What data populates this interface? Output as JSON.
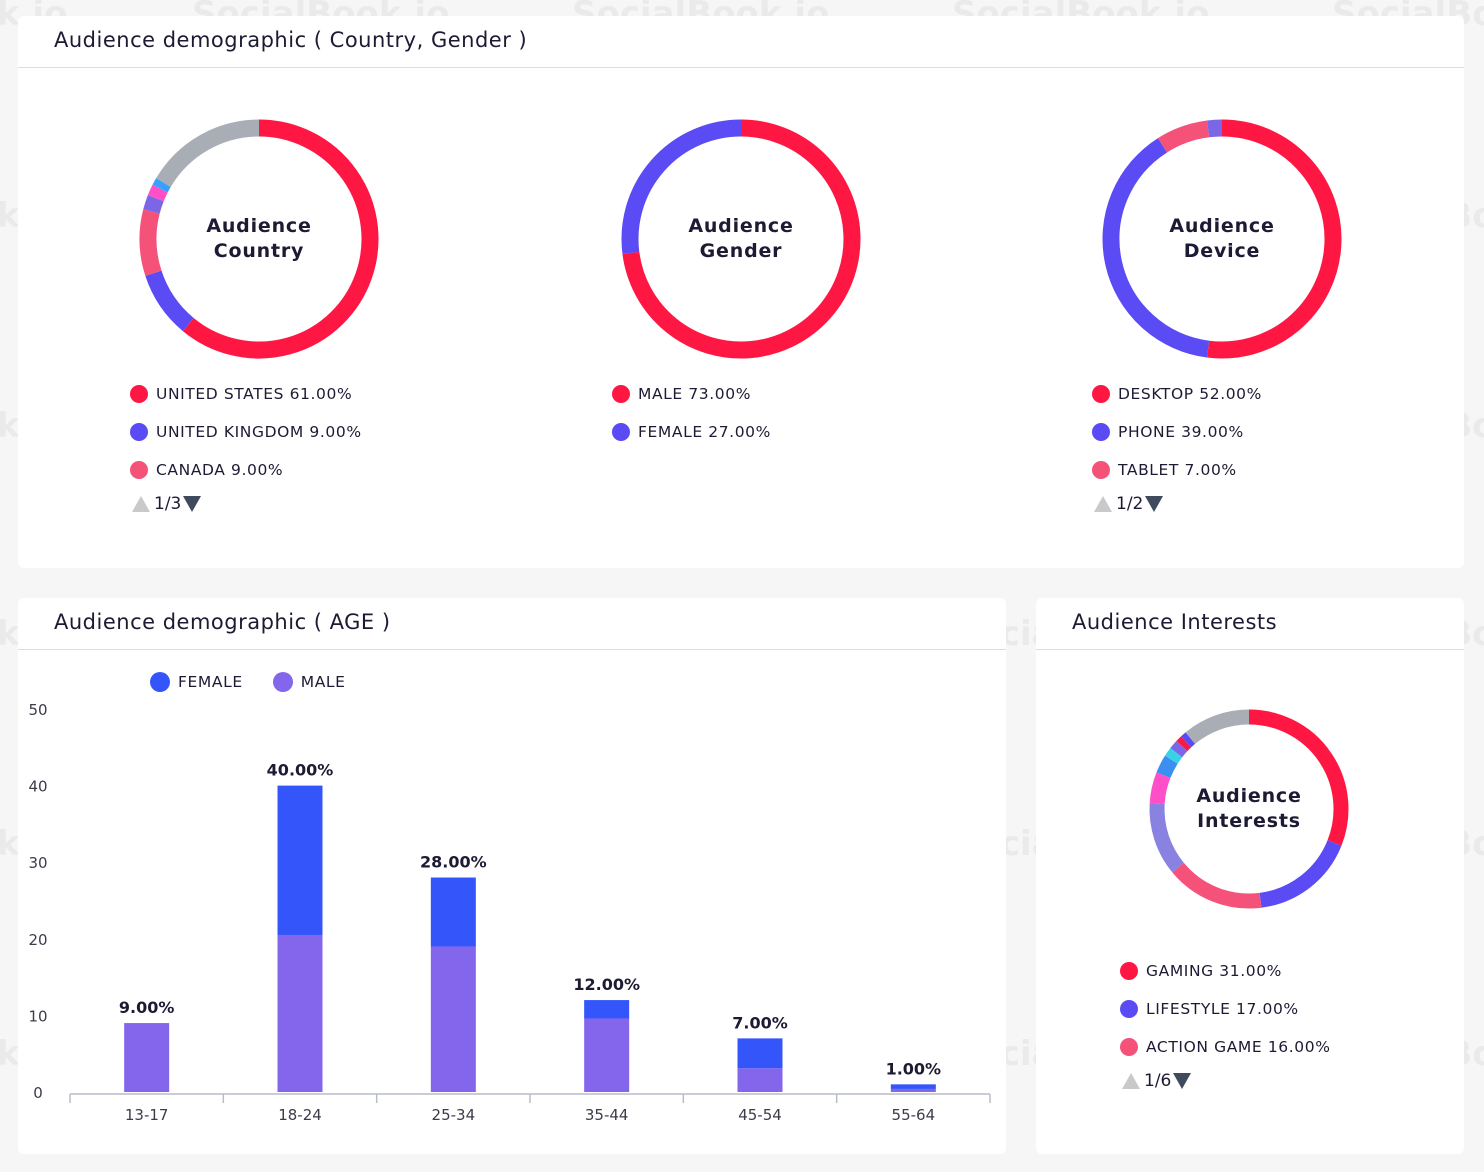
{
  "watermark": "SocialBook.io",
  "country_gender_card": {
    "title": "Audience demographic ( Country, Gender )",
    "country": {
      "center_line1": "Audience",
      "center_line2": "Country",
      "segments": [
        {
          "value": 61,
          "color": "#ff1744"
        },
        {
          "value": 9,
          "color": "#5b4bf5"
        },
        {
          "value": 9,
          "color": "#f5527a"
        },
        {
          "value": 2,
          "color": "#7b66e8"
        },
        {
          "value": 1.5,
          "color": "#ff4fc8"
        },
        {
          "value": 1,
          "color": "#3aa0ff"
        },
        {
          "value": 16.5,
          "color": "#a9adb6"
        }
      ],
      "legend": [
        {
          "label": "UNITED STATES 61.00%",
          "color": "#ff1744"
        },
        {
          "label": "UNITED KINGDOM 9.00%",
          "color": "#5b4bf5"
        },
        {
          "label": "CANADA 9.00%",
          "color": "#f5527a"
        }
      ],
      "pager": "1/3"
    },
    "gender": {
      "center_line1": "Audience",
      "center_line2": "Gender",
      "segments": [
        {
          "value": 73,
          "color": "#ff1744"
        },
        {
          "value": 27,
          "color": "#5b4bf5"
        }
      ],
      "legend": [
        {
          "label": "MALE 73.00%",
          "color": "#ff1744"
        },
        {
          "label": "FEMALE 27.00%",
          "color": "#5b4bf5"
        }
      ]
    },
    "device": {
      "center_line1": "Audience",
      "center_line2": "Device",
      "segments": [
        {
          "value": 52,
          "color": "#ff1744"
        },
        {
          "value": 39,
          "color": "#5b4bf5"
        },
        {
          "value": 7,
          "color": "#f5527a"
        },
        {
          "value": 2,
          "color": "#7b66e8"
        }
      ],
      "legend": [
        {
          "label": "DESKTOP 52.00%",
          "color": "#ff1744"
        },
        {
          "label": "PHONE 39.00%",
          "color": "#5b4bf5"
        },
        {
          "label": "TABLET 7.00%",
          "color": "#f5527a"
        }
      ],
      "pager": "1/2"
    }
  },
  "age_card": {
    "title": "Audience demographic ( AGE )",
    "legend": [
      {
        "label": "FEMALE",
        "color": "#3355fa"
      },
      {
        "label": "MALE",
        "color": "#8466ec"
      }
    ]
  },
  "interests_card": {
    "title": "Audience Interests",
    "center_line1": "Audience",
    "center_line2": "Interests",
    "segments": [
      {
        "value": 31,
        "color": "#ff1744"
      },
      {
        "value": 17,
        "color": "#5b4bf5"
      },
      {
        "value": 16,
        "color": "#f5527a"
      },
      {
        "value": 12,
        "color": "#8a82e0"
      },
      {
        "value": 5,
        "color": "#ff4fc8"
      },
      {
        "value": 3,
        "color": "#3a8ff0"
      },
      {
        "value": 1.5,
        "color": "#38d1e8"
      },
      {
        "value": 1.5,
        "color": "#7b66e8"
      },
      {
        "value": 1,
        "color": "#ff1744"
      },
      {
        "value": 1,
        "color": "#5b4bf5"
      },
      {
        "value": 11,
        "color": "#a9adb6"
      }
    ],
    "legend": [
      {
        "label": "GAMING 31.00%",
        "color": "#ff1744"
      },
      {
        "label": "LIFESTYLE 17.00%",
        "color": "#5b4bf5"
      },
      {
        "label": "ACTION GAME 16.00%",
        "color": "#f5527a"
      }
    ],
    "pager": "1/6"
  },
  "chart_data": {
    "type": "bar",
    "stacked": true,
    "categories": [
      "13-17",
      "18-24",
      "25-34",
      "35-44",
      "45-54",
      "55-64"
    ],
    "series": [
      {
        "name": "MALE",
        "color": "#8466ec",
        "values": [
          9,
          20.5,
          19,
          9.6,
          3.1,
          0.4
        ]
      },
      {
        "name": "FEMALE",
        "color": "#3355fa",
        "values": [
          0,
          19.5,
          9,
          2.4,
          3.9,
          0.6
        ]
      }
    ],
    "totals_labels": [
      "9.00%",
      "40.00%",
      "28.00%",
      "12.00%",
      "7.00%",
      "1.00%"
    ],
    "yticks": [
      "0",
      "10",
      "20",
      "30",
      "40",
      "50"
    ],
    "ylim": [
      0,
      50
    ],
    "grid": false,
    "legend_position": "top-left"
  }
}
